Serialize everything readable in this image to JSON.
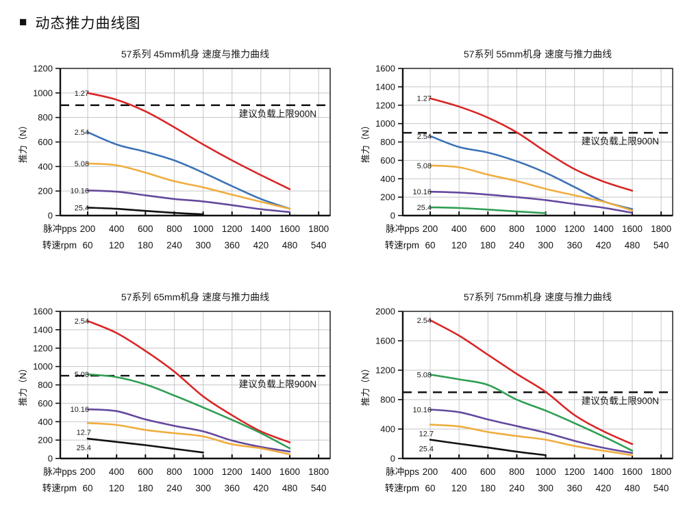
{
  "page": {
    "title": "动态推力曲线图",
    "bullet": "■"
  },
  "chart_data": [
    {
      "type": "line",
      "title": "57系列 45mm机身 速度与推力曲线",
      "ylabel": "推力（N）",
      "ylim": [
        0,
        1200
      ],
      "ytick_step": 200,
      "xlim": [
        10,
        1880
      ],
      "grid": true,
      "legend_position": "inline-left",
      "x_row_labels": [
        "脉冲pps",
        "转速rpm"
      ],
      "x_ticks_pps": [
        200,
        400,
        600,
        800,
        1000,
        1200,
        1400,
        1600,
        1800
      ],
      "x_ticks_rpm": [
        60,
        120,
        180,
        240,
        300,
        360,
        420,
        480,
        540
      ],
      "limit_line": {
        "value": 900,
        "label": "建议负载上限900N"
      },
      "series": [
        {
          "name": "1.27",
          "color": "#d92525",
          "label_pos": "left",
          "x": [
            200,
            400,
            600,
            800,
            1000,
            1200,
            1400,
            1600
          ],
          "values": [
            1000,
            945,
            850,
            720,
            580,
            450,
            330,
            215
          ]
        },
        {
          "name": "2.54",
          "color": "#3c72b6",
          "label_pos": "left",
          "x": [
            200,
            400,
            600,
            800,
            1000,
            1200,
            1400,
            1600
          ],
          "values": [
            680,
            580,
            520,
            450,
            350,
            240,
            135,
            55
          ]
        },
        {
          "name": "5.08",
          "color": "#f0ad3e",
          "label_pos": "left",
          "x": [
            200,
            400,
            600,
            800,
            1000,
            1200,
            1400,
            1600
          ],
          "values": [
            425,
            410,
            350,
            280,
            230,
            170,
            112,
            55
          ]
        },
        {
          "name": "10.16",
          "color": "#64489d",
          "label_pos": "left",
          "x": [
            200,
            400,
            600,
            800,
            1000,
            1200,
            1400,
            1600
          ],
          "values": [
            205,
            195,
            165,
            135,
            115,
            85,
            52,
            28
          ]
        },
        {
          "name": "25.4",
          "color": "#111111",
          "label_pos": "left",
          "x": [
            200,
            400,
            600,
            800,
            1000
          ],
          "values": [
            65,
            55,
            38,
            22,
            10
          ]
        }
      ]
    },
    {
      "type": "line",
      "title": "57系列 55mm机身 速度与推力曲线",
      "ylabel": "推力（N）",
      "ylim": [
        0,
        1600
      ],
      "ytick_step": 200,
      "xlim": [
        10,
        1880
      ],
      "grid": true,
      "legend_position": "inline-left",
      "x_row_labels": [
        "脉冲pps",
        "转速rpm"
      ],
      "x_ticks_pps": [
        200,
        400,
        600,
        800,
        1000,
        1200,
        1400,
        1600,
        1800
      ],
      "x_ticks_rpm": [
        60,
        120,
        180,
        240,
        300,
        360,
        420,
        480,
        540
      ],
      "limit_line": {
        "value": 900,
        "label": "建议负载上限900N"
      },
      "series": [
        {
          "name": "1.27",
          "color": "#d92525",
          "label_pos": "left",
          "x": [
            200,
            400,
            600,
            800,
            1000,
            1200,
            1400,
            1600
          ],
          "values": [
            1275,
            1185,
            1065,
            905,
            695,
            505,
            370,
            270
          ]
        },
        {
          "name": "2.54",
          "color": "#3c72b6",
          "label_pos": "left",
          "x": [
            200,
            400,
            600,
            800,
            1000,
            1200,
            1400,
            1600
          ],
          "values": [
            865,
            745,
            685,
            590,
            465,
            310,
            155,
            70
          ]
        },
        {
          "name": "5.08",
          "color": "#f0ad3e",
          "label_pos": "left",
          "x": [
            200,
            400,
            600,
            800,
            1000,
            1200,
            1400,
            1600
          ],
          "values": [
            545,
            525,
            445,
            375,
            290,
            220,
            150,
            55
          ]
        },
        {
          "name": "10.16",
          "color": "#64489d",
          "label_pos": "left",
          "x": [
            200,
            400,
            600,
            800,
            1000,
            1200,
            1400,
            1600
          ],
          "values": [
            260,
            250,
            228,
            200,
            168,
            125,
            85,
            30
          ]
        },
        {
          "name": "25.4",
          "color": "#2e9e52",
          "label_pos": "left",
          "x": [
            200,
            400,
            600,
            800,
            1000
          ],
          "values": [
            90,
            82,
            65,
            45,
            25
          ]
        }
      ]
    },
    {
      "type": "line",
      "title": "57系列 65mm机身 速度与推力曲线",
      "ylabel": "推力（N）",
      "ylim": [
        0,
        1600
      ],
      "ytick_step": 200,
      "xlim": [
        10,
        1880
      ],
      "grid": true,
      "legend_position": "inline-left",
      "x_row_labels": [
        "脉冲pps",
        "转速rpm"
      ],
      "x_ticks_pps": [
        200,
        400,
        600,
        800,
        1000,
        1200,
        1400,
        1600,
        1800
      ],
      "x_ticks_rpm": [
        60,
        120,
        180,
        240,
        300,
        360,
        420,
        480,
        540
      ],
      "limit_line": {
        "value": 900,
        "label": "建议负载上限900N"
      },
      "series": [
        {
          "name": "2.54",
          "color": "#d92525",
          "label_pos": "left",
          "x": [
            200,
            400,
            600,
            800,
            1000,
            1200,
            1400,
            1600
          ],
          "values": [
            1495,
            1365,
            1170,
            945,
            675,
            470,
            295,
            175
          ]
        },
        {
          "name": "5.08",
          "color": "#2e9e52",
          "label_pos": "left",
          "x": [
            200,
            400,
            600,
            800,
            1000,
            1200,
            1400,
            1600
          ],
          "values": [
            915,
            885,
            805,
            685,
            555,
            420,
            275,
            110
          ]
        },
        {
          "name": "10.16",
          "color": "#64489d",
          "label_pos": "left",
          "x": [
            200,
            400,
            600,
            800,
            1000,
            1200,
            1400,
            1600
          ],
          "values": [
            535,
            515,
            425,
            355,
            295,
            195,
            125,
            75
          ]
        },
        {
          "name": "12.7",
          "color": "#f0ad3e",
          "label_pos": "below",
          "x": [
            200,
            400,
            600,
            800,
            1000,
            1200,
            1400,
            1600
          ],
          "values": [
            385,
            365,
            310,
            275,
            240,
            155,
            110,
            45
          ]
        },
        {
          "name": "25.4",
          "color": "#111111",
          "label_pos": "below",
          "x": [
            200,
            400,
            600,
            800,
            1000
          ],
          "values": [
            215,
            180,
            145,
            105,
            65
          ]
        }
      ]
    },
    {
      "type": "line",
      "title": "57系列 75mm机身 速度与推力曲线",
      "ylabel": "推力（N）",
      "ylim": [
        0,
        2000
      ],
      "ytick_step": 400,
      "xlim": [
        10,
        1880
      ],
      "grid": true,
      "legend_position": "inline-left",
      "x_row_labels": [
        "脉冲pps",
        "转速rpm"
      ],
      "x_ticks_pps": [
        200,
        400,
        600,
        800,
        1000,
        1200,
        1400,
        1600,
        1800
      ],
      "x_ticks_rpm": [
        60,
        120,
        180,
        240,
        300,
        360,
        420,
        480,
        540
      ],
      "limit_line": {
        "value": 900,
        "label": "建议负载上限900N"
      },
      "series": [
        {
          "name": "2.54",
          "color": "#d92525",
          "label_pos": "left",
          "x": [
            200,
            400,
            600,
            800,
            1000,
            1200,
            1400,
            1600
          ],
          "values": [
            1880,
            1670,
            1410,
            1150,
            905,
            590,
            370,
            195
          ]
        },
        {
          "name": "5.08",
          "color": "#2e9e52",
          "label_pos": "left",
          "x": [
            200,
            400,
            600,
            800,
            1000,
            1200,
            1400,
            1600
          ],
          "values": [
            1140,
            1075,
            1000,
            800,
            650,
            480,
            300,
            105
          ]
        },
        {
          "name": "10.16",
          "color": "#64489d",
          "label_pos": "left",
          "x": [
            200,
            400,
            600,
            800,
            1000,
            1200,
            1400,
            1600
          ],
          "values": [
            665,
            630,
            530,
            440,
            350,
            240,
            145,
            75
          ]
        },
        {
          "name": "12.7",
          "color": "#f0ad3e",
          "label_pos": "below",
          "x": [
            200,
            400,
            600,
            800,
            1000,
            1200,
            1400,
            1600
          ],
          "values": [
            460,
            435,
            360,
            305,
            255,
            170,
            105,
            45
          ]
        },
        {
          "name": "25.4",
          "color": "#111111",
          "label_pos": "below",
          "x": [
            200,
            400,
            600,
            800,
            1000
          ],
          "values": [
            255,
            200,
            148,
            92,
            45
          ]
        }
      ]
    }
  ]
}
